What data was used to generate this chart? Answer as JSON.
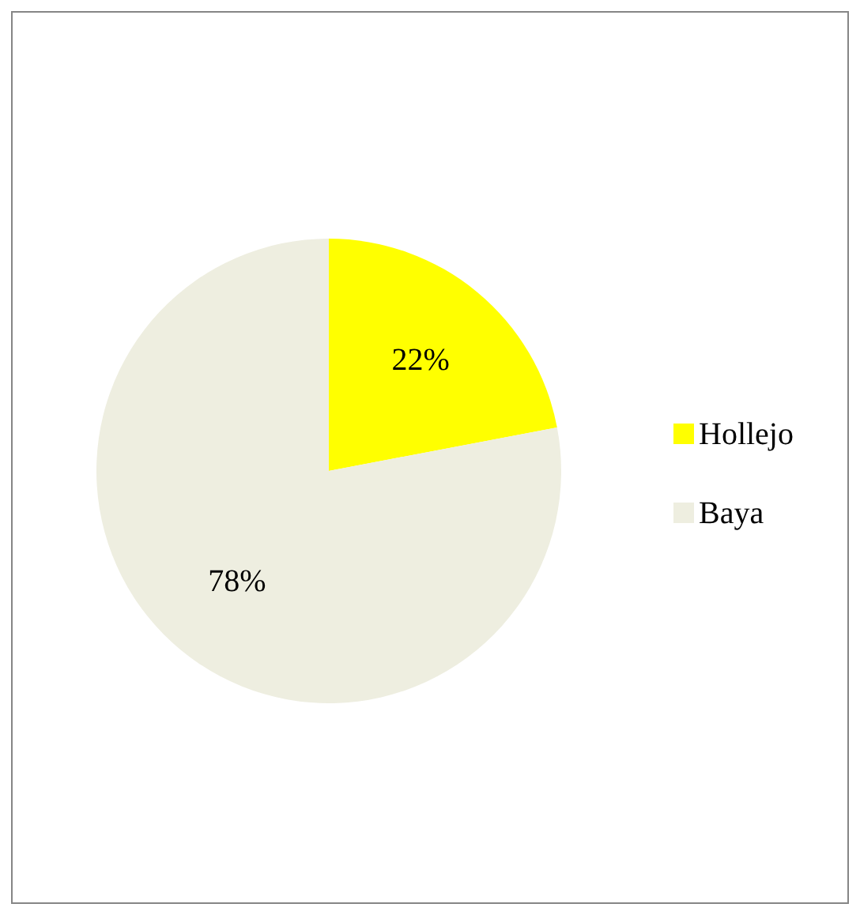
{
  "chart_data": {
    "type": "pie",
    "categories": [
      "Hollejo",
      "Baya"
    ],
    "values": [
      22,
      78
    ],
    "colors": [
      "#ffff00",
      "#eeeee0"
    ],
    "value_labels": [
      "22%",
      "78%"
    ],
    "legend": "right"
  }
}
